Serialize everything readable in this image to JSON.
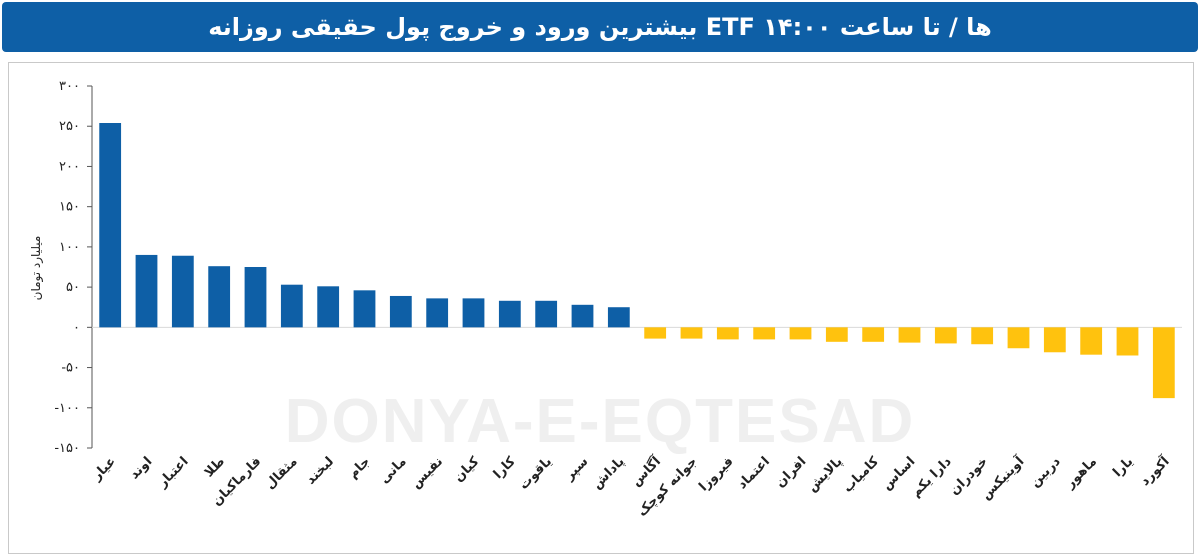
{
  "title": "بیشترین ورود و خروج پول حقیقی روزانه ETF ها / تا ساعت ۱۴:۰۰",
  "watermark": "DONYA-E-EQTESAD",
  "colors": {
    "header": "#0e5fa6",
    "positive": "#0e5fa6",
    "negative": "#ffc20e"
  },
  "chart_data": {
    "type": "bar",
    "ylabel": "میلیارد تومان",
    "ylim": [
      -150,
      300
    ],
    "yticks": [
      300,
      250,
      200,
      150,
      100,
      50,
      0,
      -50,
      -100,
      -150
    ],
    "ytick_labels": [
      "۳۰۰",
      "۲۵۰",
      "۲۰۰",
      "۱۵۰",
      "۱۰۰",
      "۵۰",
      "۰",
      "-۵۰",
      "-۱۰۰",
      "-۱۵۰"
    ],
    "grid": false,
    "categories": [
      "عیار",
      "اوند",
      "اعتبار",
      "طلا",
      "فارماکیان",
      "مثقال",
      "لبخند",
      "جام",
      "مانی",
      "نفیس",
      "کیان",
      "کارا",
      "یاقوت",
      "سپر",
      "پاداش",
      "آگاس",
      "جوانه کوچک",
      "فیروزا",
      "اعتماد",
      "افران",
      "پالایش",
      "کامیاب",
      "اساس",
      "دارا یکم",
      "خودران",
      "آوینیکس",
      "دربین",
      "ماهور",
      "یارا",
      "آکورد"
    ],
    "values": [
      254,
      90,
      89,
      76,
      75,
      53,
      51,
      46,
      39,
      36,
      36,
      33,
      33,
      28,
      25,
      -14,
      -14,
      -15,
      -15,
      -15,
      -18,
      -18,
      -19,
      -20,
      -21,
      -26,
      -31,
      -34,
      -35,
      -88
    ]
  }
}
